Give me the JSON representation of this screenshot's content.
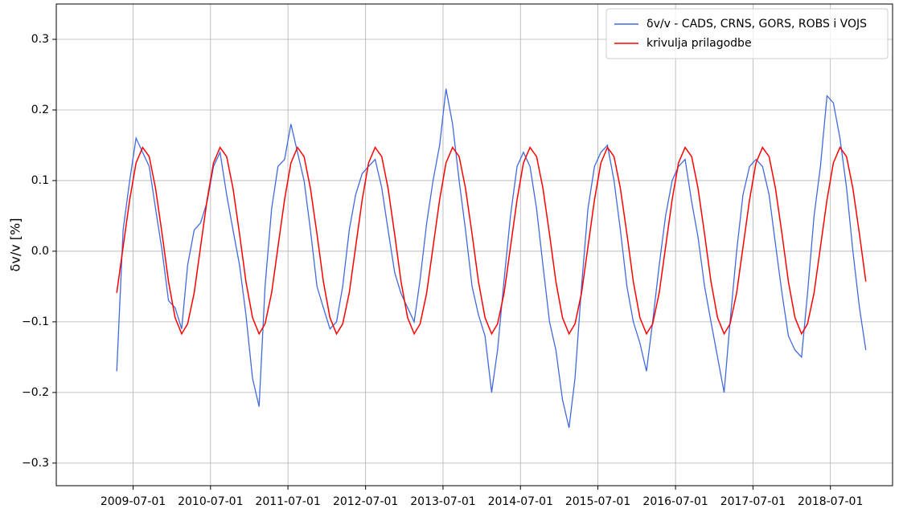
{
  "chart_data": {
    "type": "line",
    "y_label": "δv/v [%]",
    "x": [
      "2009-04-15",
      "2009-05-15",
      "2009-06-15",
      "2009-07-15",
      "2009-08-15",
      "2009-09-15",
      "2009-10-15",
      "2009-11-15",
      "2009-12-15",
      "2010-01-15",
      "2010-02-15",
      "2010-03-15",
      "2010-04-15",
      "2010-05-15",
      "2010-06-15",
      "2010-07-15",
      "2010-08-15",
      "2010-09-15",
      "2010-10-15",
      "2010-11-15",
      "2010-12-15",
      "2011-01-15",
      "2011-02-15",
      "2011-03-15",
      "2011-04-15",
      "2011-05-15",
      "2011-06-15",
      "2011-07-15",
      "2011-08-15",
      "2011-09-15",
      "2011-10-15",
      "2011-11-15",
      "2011-12-15",
      "2012-01-15",
      "2012-02-15",
      "2012-03-15",
      "2012-04-15",
      "2012-05-15",
      "2012-06-15",
      "2012-07-15",
      "2012-08-15",
      "2012-09-15",
      "2012-10-15",
      "2012-11-15",
      "2012-12-15",
      "2013-01-15",
      "2013-02-15",
      "2013-03-15",
      "2013-04-15",
      "2013-05-15",
      "2013-06-15",
      "2013-07-15",
      "2013-08-15",
      "2013-09-15",
      "2013-10-15",
      "2013-11-15",
      "2013-12-15",
      "2014-01-15",
      "2014-02-15",
      "2014-03-15",
      "2014-04-15",
      "2014-05-15",
      "2014-06-15",
      "2014-07-15",
      "2014-08-15",
      "2014-09-15",
      "2014-10-15",
      "2014-11-15",
      "2014-12-15",
      "2015-01-15",
      "2015-02-15",
      "2015-03-15",
      "2015-04-15",
      "2015-05-15",
      "2015-06-15",
      "2015-07-15",
      "2015-08-15",
      "2015-09-15",
      "2015-10-15",
      "2015-11-15",
      "2015-12-15",
      "2016-01-15",
      "2016-02-15",
      "2016-03-15",
      "2016-04-15",
      "2016-05-15",
      "2016-06-15",
      "2016-07-15",
      "2016-08-15",
      "2016-09-15",
      "2016-10-15",
      "2016-11-15",
      "2016-12-15",
      "2017-01-15",
      "2017-02-15",
      "2017-03-15",
      "2017-04-15",
      "2017-05-15",
      "2017-06-15",
      "2017-07-15",
      "2017-08-15",
      "2017-09-15",
      "2017-10-15",
      "2017-11-15",
      "2017-12-15",
      "2018-01-15",
      "2018-02-15",
      "2018-03-15",
      "2018-04-15",
      "2018-05-15",
      "2018-06-15",
      "2018-07-15",
      "2018-08-15",
      "2018-09-15",
      "2018-10-15",
      "2018-11-15",
      "2018-12-15"
    ],
    "series": [
      {
        "name": "δv/v - CADS, CRNS, GORS, ROBS i VOJS",
        "color": "#4169e1",
        "values": [
          -0.17,
          0.03,
          0.1,
          0.16,
          0.14,
          0.12,
          0.06,
          0.0,
          -0.07,
          -0.08,
          -0.11,
          -0.02,
          0.03,
          0.04,
          0.07,
          0.12,
          0.14,
          0.08,
          0.03,
          -0.02,
          -0.09,
          -0.18,
          -0.22,
          -0.05,
          0.06,
          0.12,
          0.13,
          0.18,
          0.14,
          0.1,
          0.03,
          -0.05,
          -0.08,
          -0.11,
          -0.1,
          -0.05,
          0.03,
          0.08,
          0.11,
          0.12,
          0.13,
          0.09,
          0.03,
          -0.03,
          -0.06,
          -0.08,
          -0.1,
          -0.04,
          0.04,
          0.1,
          0.15,
          0.23,
          0.18,
          0.1,
          0.03,
          -0.05,
          -0.09,
          -0.12,
          -0.2,
          -0.14,
          -0.04,
          0.05,
          0.12,
          0.14,
          0.12,
          0.06,
          -0.02,
          -0.1,
          -0.14,
          -0.21,
          -0.25,
          -0.18,
          -0.05,
          0.06,
          0.12,
          0.14,
          0.15,
          0.1,
          0.03,
          -0.05,
          -0.1,
          -0.13,
          -0.17,
          -0.1,
          -0.02,
          0.05,
          0.1,
          0.12,
          0.13,
          0.07,
          0.02,
          -0.05,
          -0.1,
          -0.15,
          -0.2,
          -0.1,
          0.0,
          0.08,
          0.12,
          0.13,
          0.12,
          0.08,
          0.01,
          -0.06,
          -0.12,
          -0.14,
          -0.15,
          -0.06,
          0.05,
          0.12,
          0.22,
          0.21,
          0.16,
          0.09,
          0.0,
          -0.08,
          -0.14
        ]
      },
      {
        "name": "krivulja prilagodbe",
        "color": "#ff0000",
        "values": [
          -0.059,
          0.006,
          0.073,
          0.125,
          0.147,
          0.134,
          0.089,
          0.024,
          -0.043,
          -0.094,
          -0.117,
          -0.103,
          -0.059,
          0.006,
          0.073,
          0.125,
          0.147,
          0.134,
          0.089,
          0.024,
          -0.043,
          -0.094,
          -0.117,
          -0.103,
          -0.059,
          0.006,
          0.073,
          0.125,
          0.147,
          0.134,
          0.089,
          0.024,
          -0.043,
          -0.094,
          -0.117,
          -0.103,
          -0.059,
          0.006,
          0.073,
          0.125,
          0.147,
          0.134,
          0.089,
          0.024,
          -0.043,
          -0.094,
          -0.117,
          -0.103,
          -0.059,
          0.006,
          0.073,
          0.125,
          0.147,
          0.134,
          0.089,
          0.024,
          -0.043,
          -0.094,
          -0.117,
          -0.103,
          -0.059,
          0.006,
          0.073,
          0.125,
          0.147,
          0.134,
          0.089,
          0.024,
          -0.043,
          -0.094,
          -0.117,
          -0.103,
          -0.059,
          0.006,
          0.073,
          0.125,
          0.147,
          0.134,
          0.089,
          0.024,
          -0.043,
          -0.094,
          -0.117,
          -0.103,
          -0.059,
          0.006,
          0.073,
          0.125,
          0.147,
          0.134,
          0.089,
          0.024,
          -0.043,
          -0.094,
          -0.117,
          -0.103,
          -0.059,
          0.006,
          0.073,
          0.125,
          0.147,
          0.134,
          0.089,
          0.024,
          -0.043,
          -0.094,
          -0.117,
          -0.103,
          -0.059,
          0.006,
          0.073,
          0.125,
          0.147,
          0.134,
          0.089,
          0.024,
          -0.043
        ]
      }
    ],
    "xlim": [
      "2008-07-04",
      "2019-04-20"
    ],
    "xticks": [
      "2009-07-01",
      "2010-07-01",
      "2011-07-01",
      "2012-07-01",
      "2013-07-01",
      "2014-07-01",
      "2015-07-01",
      "2016-07-01",
      "2017-07-01",
      "2018-07-01"
    ],
    "ylim": [
      -0.332,
      0.35
    ],
    "yticks": [
      {
        "value": -0.3,
        "label": "−0.3"
      },
      {
        "value": -0.2,
        "label": "−0.2"
      },
      {
        "value": -0.1,
        "label": "−0.1"
      },
      {
        "value": 0,
        "label": "0.0"
      },
      0.1,
      0.2,
      0.3
    ],
    "grid": true,
    "legend": "upper right"
  }
}
